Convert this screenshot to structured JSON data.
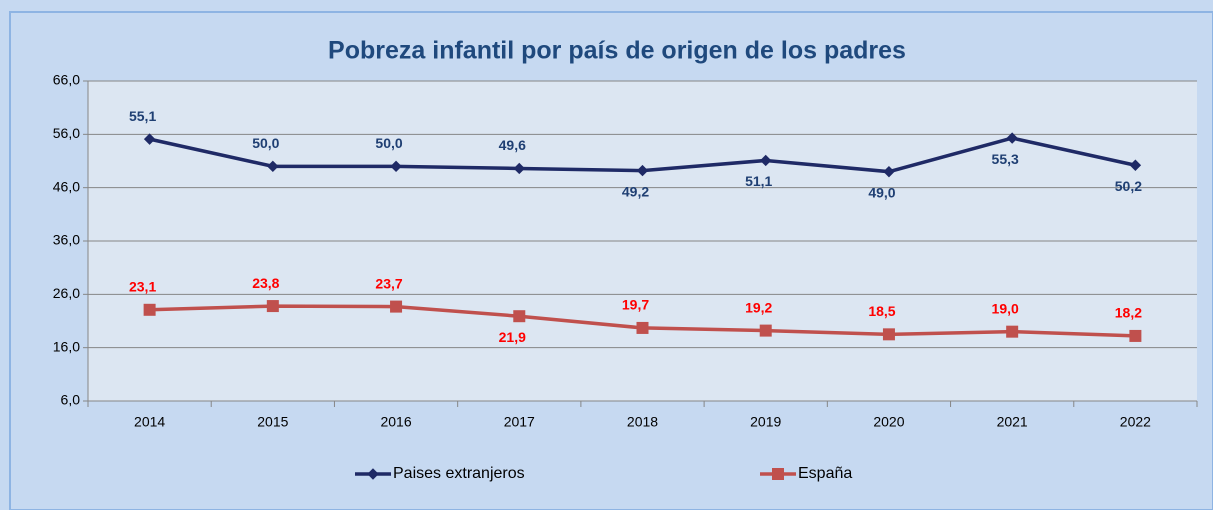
{
  "chart_data": {
    "type": "line",
    "title": "Pobreza infantil por país de origen de los padres",
    "categories": [
      "2014",
      "2015",
      "2016",
      "2017",
      "2018",
      "2019",
      "2020",
      "2021",
      "2022"
    ],
    "series": [
      {
        "name": "Paises extranjeros",
        "color": "#1f2a66",
        "label_color": "#1f3f73",
        "marker": "diamond",
        "values": [
          55.1,
          50.0,
          50.0,
          49.6,
          49.2,
          51.1,
          49.0,
          55.3,
          50.2
        ],
        "value_labels": [
          "55,1",
          "50,0",
          "50,0",
          "49,6",
          "49,2",
          "51,1",
          "49,0",
          "55,3",
          "50,2"
        ]
      },
      {
        "name": "España",
        "color": "#c0504d",
        "label_color": "#ff0000",
        "marker": "square",
        "values": [
          23.1,
          23.8,
          23.7,
          21.9,
          19.7,
          19.2,
          18.5,
          19.0,
          18.2
        ],
        "value_labels": [
          "23,1",
          "23,8",
          "23,7",
          "21,9",
          "19,7",
          "19,2",
          "18,5",
          "19,0",
          "18,2"
        ]
      }
    ],
    "ylim": [
      6,
      66
    ],
    "yticks": [
      {
        "value": 6,
        "label": "6,0"
      },
      {
        "value": 16,
        "label": "16,0"
      },
      {
        "value": 26,
        "label": "26,0"
      },
      {
        "value": 36,
        "label": "36,0"
      },
      {
        "value": 46,
        "label": "46,0"
      },
      {
        "value": 56,
        "label": "56,0"
      },
      {
        "value": 66,
        "label": "66,0"
      }
    ],
    "grid": true,
    "legend": "bottom"
  }
}
